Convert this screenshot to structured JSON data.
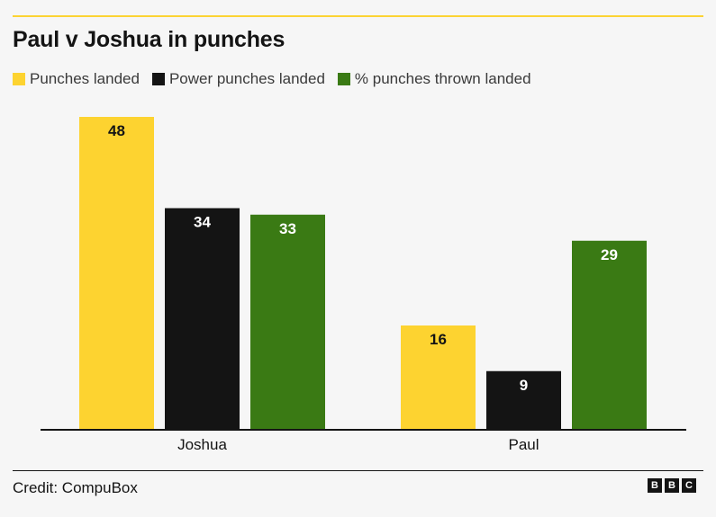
{
  "title": "Paul v Joshua in punches",
  "credit": "Credit: CompuBox",
  "logo": {
    "letters": [
      "B",
      "B",
      "C"
    ]
  },
  "colors": {
    "accent_rule": "#fcd333",
    "axis": "#141414"
  },
  "chart_data": {
    "type": "bar",
    "title": "Paul v Joshua in punches",
    "xlabel": "",
    "ylabel": "",
    "categories": [
      "Joshua",
      "Paul"
    ],
    "ylim": [
      0,
      48
    ],
    "grid": false,
    "legend_position": "top-left",
    "series": [
      {
        "name": "Punches landed",
        "values": [
          48,
          16
        ],
        "color": "#fdd330",
        "label_color": "#141414"
      },
      {
        "name": "Power punches landed",
        "values": [
          34,
          9
        ],
        "color": "#141414",
        "label_color": "#ffffff"
      },
      {
        "name": "% punches thrown landed",
        "values": [
          33,
          29
        ],
        "color": "#3a7a14",
        "label_color": "#ffffff"
      }
    ]
  }
}
